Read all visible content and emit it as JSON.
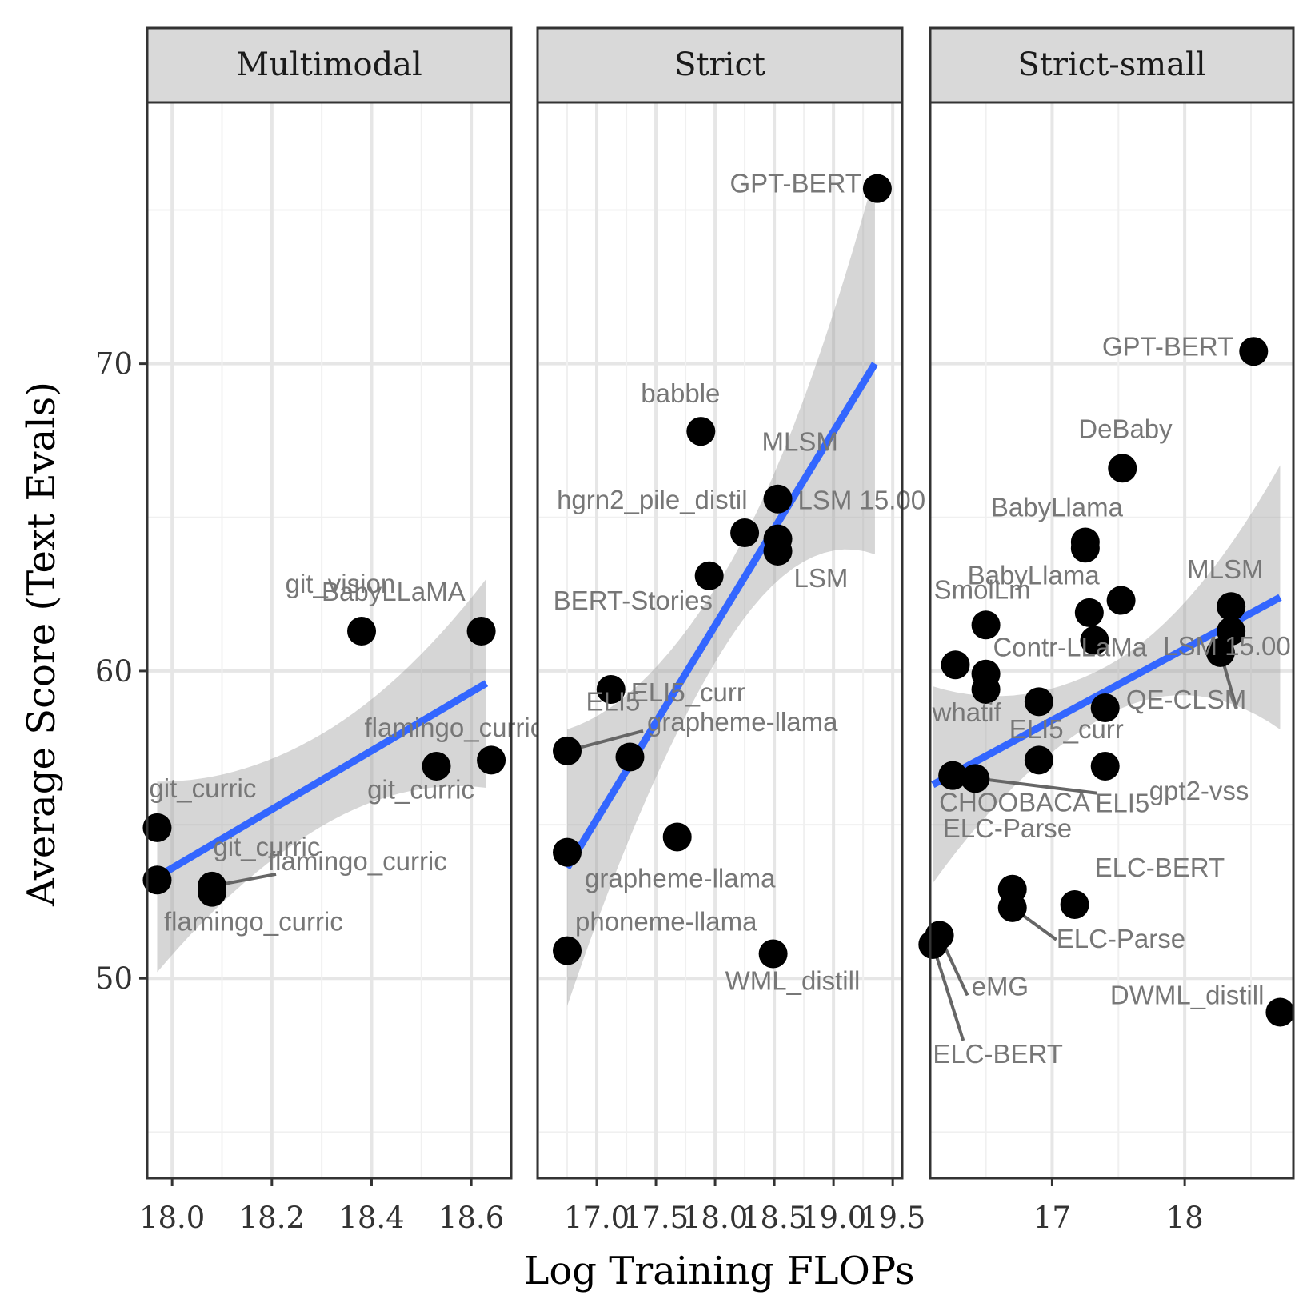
{
  "chart_data": {
    "type": "scatter",
    "xlabel": "Log Training FLOPs",
    "ylabel": "Average Score (Text Evals)",
    "y_ticks": [
      50,
      60,
      70
    ],
    "ylim": [
      43.5,
      78.5
    ],
    "fit": "linear with confidence band",
    "panels": [
      {
        "title": "Multimodal",
        "xlim": [
          17.95,
          18.68
        ],
        "x_ticks": [
          "18.0",
          "18.2",
          "18.4",
          "18.6"
        ],
        "x_tick_values": [
          18.0,
          18.2,
          18.4,
          18.6
        ],
        "fit_line": [
          [
            17.97,
            53.3
          ],
          [
            18.63,
            59.6
          ]
        ],
        "band_width": [
          3.1,
          1.5,
          3.4
        ],
        "points": [
          {
            "x": 17.97,
            "y": 54.9,
            "label": "git_curric"
          },
          {
            "x": 17.97,
            "y": 53.2,
            "label": "git_curric"
          },
          {
            "x": 18.08,
            "y": 53.0,
            "label": "flamingo_curric"
          },
          {
            "x": 18.08,
            "y": 52.8,
            "label": "flamingo_curric"
          },
          {
            "x": 18.38,
            "y": 61.3,
            "label": "BabyLLaMA"
          },
          {
            "x": 18.53,
            "y": 56.9,
            "label": "flamingo_curric"
          },
          {
            "x": 18.62,
            "y": 61.3,
            "label": "git_vision"
          },
          {
            "x": 18.64,
            "y": 57.1,
            "label": "git_curric"
          }
        ]
      },
      {
        "title": "Strict",
        "xlim": [
          16.5,
          19.58
        ],
        "x_ticks": [
          "17.0",
          "17.5",
          "18.0",
          "18.5",
          "19.0",
          "19.5"
        ],
        "x_tick_values": [
          17.0,
          17.5,
          18.0,
          18.5,
          19.0,
          19.5
        ],
        "fit_line": [
          [
            16.75,
            53.6
          ],
          [
            19.35,
            70.0
          ]
        ],
        "band_width": [
          4.5,
          1.2,
          6.2
        ],
        "points": [
          {
            "x": 19.37,
            "y": 75.7,
            "label": "GPT-BERT"
          },
          {
            "x": 17.88,
            "y": 67.8,
            "label": "babble"
          },
          {
            "x": 18.53,
            "y": 65.6,
            "label": "MLSM"
          },
          {
            "x": 18.25,
            "y": 64.5,
            "label": "hgrn2_pile_distil"
          },
          {
            "x": 18.53,
            "y": 64.3,
            "label": "LSM 15.00"
          },
          {
            "x": 18.53,
            "y": 63.9,
            "label": "LSM"
          },
          {
            "x": 17.95,
            "y": 63.1,
            "label": "BERT-Stories"
          },
          {
            "x": 17.12,
            "y": 59.4,
            "label": "ELI5_curr"
          },
          {
            "x": 16.75,
            "y": 57.4,
            "label": "grapheme-llama"
          },
          {
            "x": 17.28,
            "y": 57.2,
            "label": "ELI5"
          },
          {
            "x": 17.68,
            "y": 54.6,
            "label": ""
          },
          {
            "x": 16.75,
            "y": 54.1,
            "label": "grapheme-llama"
          },
          {
            "x": 16.75,
            "y": 50.9,
            "label": "phoneme-llama"
          },
          {
            "x": 18.49,
            "y": 50.8,
            "label": "WML_distill"
          }
        ]
      },
      {
        "title": "Strict-small",
        "xlim": [
          16.08,
          18.82
        ],
        "x_ticks": [
          "17",
          "18"
        ],
        "x_tick_values": [
          17,
          18
        ],
        "fit_line": [
          [
            16.1,
            56.3
          ],
          [
            18.72,
            62.4
          ]
        ],
        "band_width": [
          3.2,
          0.8,
          4.3
        ],
        "points": [
          {
            "x": 18.52,
            "y": 70.4,
            "label": "GPT-BERT"
          },
          {
            "x": 17.53,
            "y": 66.6,
            "label": "DeBaby"
          },
          {
            "x": 17.25,
            "y": 64.2,
            "label": "BabyLlama"
          },
          {
            "x": 17.25,
            "y": 64.0,
            "label": ""
          },
          {
            "x": 17.52,
            "y": 62.3,
            "label": "BabyLlama"
          },
          {
            "x": 18.35,
            "y": 62.1,
            "label": "MLSM"
          },
          {
            "x": 17.28,
            "y": 61.9,
            "label": ""
          },
          {
            "x": 16.5,
            "y": 61.5,
            "label": "SmolLm"
          },
          {
            "x": 18.35,
            "y": 61.3,
            "label": "LSM 15.00"
          },
          {
            "x": 17.32,
            "y": 61.0,
            "label": "Contr-LLaMa"
          },
          {
            "x": 18.27,
            "y": 60.6,
            "label": "QE-CLSM"
          },
          {
            "x": 16.27,
            "y": 60.2,
            "label": ""
          },
          {
            "x": 16.5,
            "y": 59.9,
            "label": ""
          },
          {
            "x": 16.5,
            "y": 59.4,
            "label": "whatif"
          },
          {
            "x": 16.9,
            "y": 59.0,
            "label": ""
          },
          {
            "x": 17.4,
            "y": 58.8,
            "label": "ELI5_curr"
          },
          {
            "x": 16.9,
            "y": 57.1,
            "label": ""
          },
          {
            "x": 17.4,
            "y": 56.9,
            "label": "gpt2-vss"
          },
          {
            "x": 16.25,
            "y": 56.6,
            "label": "CHOOBACA"
          },
          {
            "x": 16.42,
            "y": 56.5,
            "label": "ELI5"
          },
          {
            "x": 16.7,
            "y": 52.9,
            "label": "ELC-Parse"
          },
          {
            "x": 17.17,
            "y": 52.4,
            "label": "ELC-BERT"
          },
          {
            "x": 16.7,
            "y": 52.3,
            "label": "ELC-Parse"
          },
          {
            "x": 16.15,
            "y": 51.4,
            "label": "eMG"
          },
          {
            "x": 16.1,
            "y": 51.1,
            "label": "ELC-BERT"
          },
          {
            "x": 18.72,
            "y": 48.9,
            "label": "DWML_distill"
          }
        ]
      }
    ]
  }
}
